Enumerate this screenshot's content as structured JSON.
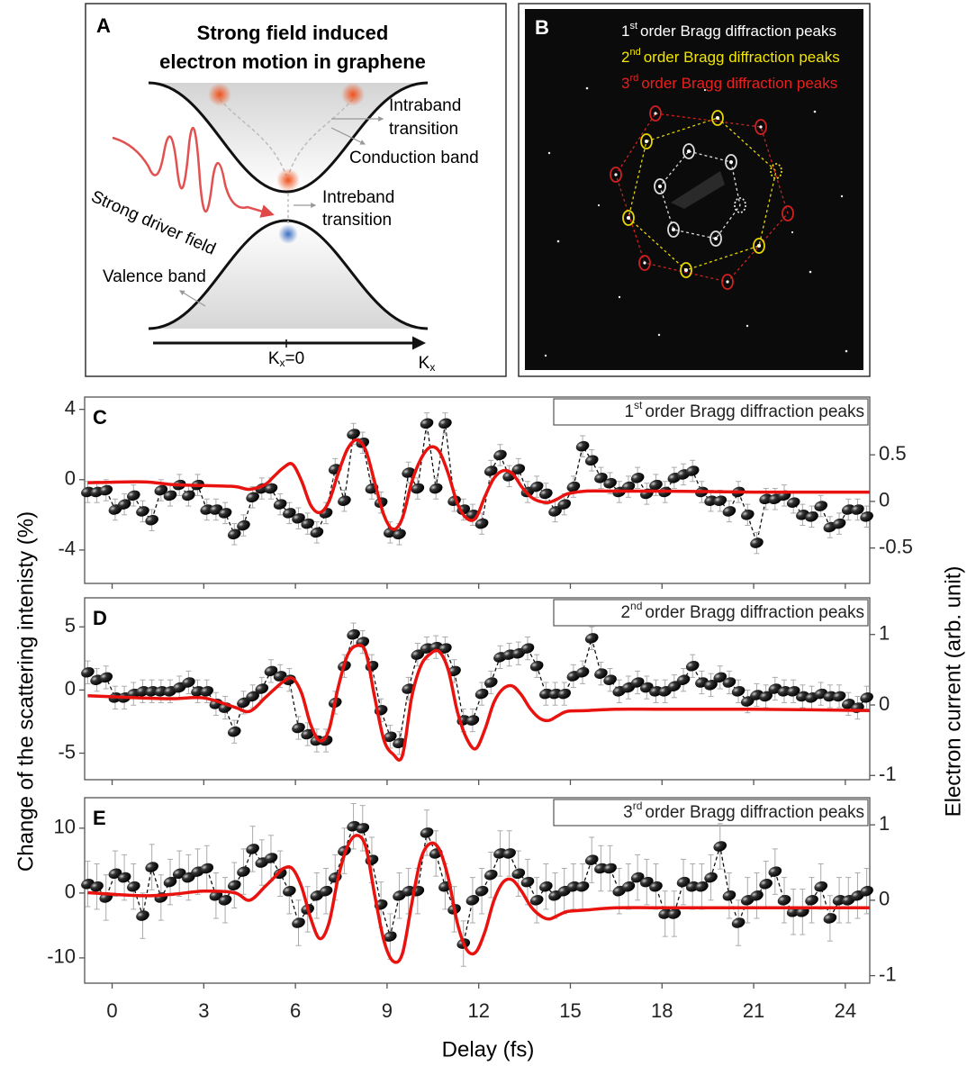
{
  "panel_a": {
    "label": "A",
    "title_lines": [
      "Strong field induced",
      "electron motion in graphene"
    ],
    "intraband": [
      "Intraband",
      "transition"
    ],
    "conduction_band": "Conduction band",
    "interband": [
      "Intreband",
      "transition"
    ],
    "driver_field": "Strong driver field",
    "valence_band": "Valence band",
    "k_origin": {
      "symbol": "K",
      "subscript": "x",
      "rest": "=0"
    },
    "k_axis": {
      "symbol": "K",
      "subscript": "x"
    }
  },
  "panel_b": {
    "label": "B",
    "legend": [
      {
        "number": "1",
        "sup": "st",
        "text": "order Bragg diffraction peaks",
        "color": "#ffffff"
      },
      {
        "number": "2",
        "sup": "nd",
        "text": "order Bragg diffraction peaks",
        "color": "#f2e600"
      },
      {
        "number": "3",
        "sup": "rd",
        "text": "order Bragg diffraction peaks",
        "color": "#e8201e"
      }
    ]
  },
  "axes_labels": {
    "x": "Delay (fs)",
    "y": "Change of the scattering intenisty (%)",
    "y2": "Electron current (arb. unit)"
  },
  "chart_data": [
    {
      "type": "line",
      "panel_label": "C",
      "title_number": "1",
      "title_sup": "st",
      "title": "order Bragg diffraction peaks",
      "xlim": [
        -0.9,
        24.8
      ],
      "xticks": [
        0,
        3,
        6,
        9,
        12,
        15,
        18,
        21,
        24
      ],
      "ylim": [
        -5.9,
        4.7
      ],
      "yticks": [
        -4,
        0,
        4
      ],
      "y2lim": [
        -0.88,
        1.12
      ],
      "y2ticks": [
        -0.5,
        0,
        0.5
      ],
      "series": [
        {
          "color": "#111111",
          "marker": true,
          "dashed": true,
          "error": 0.6,
          "x": [
            -0.8,
            -0.5,
            -0.2,
            0.1,
            0.4,
            0.7,
            1.0,
            1.3,
            1.6,
            1.9,
            2.2,
            2.5,
            2.8,
            3.1,
            3.4,
            3.7,
            4.0,
            4.3,
            4.6,
            4.9,
            5.2,
            5.5,
            5.8,
            6.1,
            6.4,
            6.7,
            7.0,
            7.3,
            7.6,
            7.9,
            8.2,
            8.5,
            8.8,
            9.1,
            9.4,
            9.7,
            10.0,
            10.3,
            10.6,
            10.9,
            11.2,
            11.5,
            11.8,
            12.1,
            12.4,
            12.7,
            13.0,
            13.3,
            13.6,
            13.9,
            14.2,
            14.5,
            14.8,
            15.1,
            15.4,
            15.7,
            16.0,
            16.3,
            16.6,
            16.9,
            17.2,
            17.5,
            17.8,
            18.1,
            18.4,
            18.7,
            19.0,
            19.3,
            19.6,
            19.9,
            20.2,
            20.5,
            20.8,
            21.1,
            21.4,
            21.7,
            22.0,
            22.3,
            22.6,
            22.9,
            23.2,
            23.5,
            23.8,
            24.1,
            24.4,
            24.7
          ],
          "values": [
            -0.7,
            -0.7,
            -0.6,
            -1.7,
            -1.4,
            -0.9,
            -1.8,
            -2.3,
            -0.6,
            -0.9,
            -0.3,
            -0.9,
            -0.3,
            -1.7,
            -1.7,
            -1.9,
            -3.1,
            -2.6,
            -1.0,
            -0.5,
            -0.5,
            -1.4,
            -1.9,
            -2.2,
            -2.5,
            -3.0,
            -1.9,
            0.6,
            -1.2,
            2.6,
            2.1,
            -0.5,
            -1.3,
            -3.0,
            -3.1,
            0.4,
            -0.5,
            3.2,
            -0.5,
            3.2,
            -1.2,
            -1.7,
            -2.0,
            -2.5,
            0.5,
            1.4,
            0.2,
            0.6,
            -0.7,
            -0.4,
            -0.8,
            -1.8,
            -1.4,
            -0.4,
            1.9,
            1.1,
            0.1,
            -0.2,
            -0.7,
            -0.4,
            0.1,
            -0.8,
            -0.3,
            -0.7,
            0.1,
            0.3,
            0.5,
            -0.7,
            -1.2,
            -1.2,
            -1.8,
            -0.7,
            -2.0,
            -3.6,
            -1.1,
            -1.1,
            -0.9,
            -1.3,
            -2.0,
            -2.1,
            -1.5,
            -2.7,
            -2.5,
            -1.7,
            -1.7,
            -2.1
          ]
        },
        {
          "color": "#e8130f",
          "axis": "y2",
          "x": [
            -0.8,
            1,
            2,
            3,
            4,
            4.5,
            5,
            5.3,
            5.6,
            5.9,
            6.2,
            6.5,
            6.8,
            7.1,
            7.4,
            7.7,
            8.0,
            8.3,
            8.6,
            8.9,
            9.2,
            9.5,
            9.8,
            10.1,
            10.4,
            10.7,
            11.0,
            11.3,
            11.6,
            11.9,
            12.2,
            12.5,
            12.8,
            13.1,
            13.4,
            13.7,
            14.0,
            14.3,
            14.6,
            14.9,
            15.5,
            16.5,
            18,
            21,
            24.8
          ],
          "values": [
            0.2,
            0.21,
            0.18,
            0.17,
            0.16,
            0.13,
            0.18,
            0.27,
            0.36,
            0.4,
            0.22,
            -0.04,
            -0.12,
            0.0,
            0.3,
            0.56,
            0.66,
            0.55,
            0.2,
            -0.15,
            -0.3,
            -0.18,
            0.2,
            0.45,
            0.58,
            0.54,
            0.3,
            -0.02,
            -0.18,
            -0.18,
            0.05,
            0.25,
            0.33,
            0.3,
            0.16,
            0.05,
            0.0,
            -0.01,
            0.03,
            0.08,
            0.11,
            0.11,
            0.11,
            0.1,
            0.1
          ]
        }
      ]
    },
    {
      "type": "line",
      "panel_label": "D",
      "title_number": "2",
      "title_sup": "nd",
      "title": "order Bragg diffraction peaks",
      "xlim": [
        -0.9,
        24.8
      ],
      "xticks": [
        0,
        3,
        6,
        9,
        12,
        15,
        18,
        21,
        24
      ],
      "ylim": [
        -7.1,
        7.3
      ],
      "yticks": [
        -5,
        0,
        5
      ],
      "y2lim": [
        -1.06,
        1.52
      ],
      "y2ticks": [
        -1,
        0,
        1
      ],
      "series": [
        {
          "color": "#111111",
          "marker": true,
          "dashed": true,
          "error": 0.9,
          "x": [
            -0.8,
            -0.5,
            -0.2,
            0.1,
            0.4,
            0.7,
            1.0,
            1.3,
            1.6,
            1.9,
            2.2,
            2.5,
            2.8,
            3.1,
            3.4,
            3.7,
            4.0,
            4.3,
            4.6,
            4.9,
            5.2,
            5.5,
            5.8,
            6.1,
            6.4,
            6.7,
            7.0,
            7.3,
            7.6,
            7.9,
            8.2,
            8.5,
            8.8,
            9.1,
            9.4,
            9.7,
            10.0,
            10.3,
            10.6,
            10.9,
            11.2,
            11.5,
            11.8,
            12.1,
            12.4,
            12.7,
            13.0,
            13.3,
            13.6,
            13.9,
            14.2,
            14.5,
            14.8,
            15.1,
            15.4,
            15.7,
            16.0,
            16.3,
            16.6,
            16.9,
            17.2,
            17.5,
            17.8,
            18.1,
            18.4,
            18.7,
            19.0,
            19.3,
            19.6,
            19.9,
            20.2,
            20.5,
            20.8,
            21.1,
            21.4,
            21.7,
            22.0,
            22.3,
            22.6,
            22.9,
            23.2,
            23.5,
            23.8,
            24.1,
            24.4,
            24.7
          ],
          "values": [
            1.4,
            0.8,
            1.0,
            -0.6,
            -0.6,
            -0.3,
            -0.1,
            -0.1,
            -0.1,
            -0.1,
            0.2,
            0.6,
            -0.1,
            -0.1,
            -1.1,
            -1.4,
            -3.3,
            -1.0,
            -0.5,
            0.1,
            1.5,
            1.1,
            0.8,
            -3.0,
            -3.5,
            -4.0,
            -4.0,
            -1.0,
            1.9,
            4.4,
            3.8,
            1.9,
            -1.6,
            -3.7,
            -4.2,
            0.1,
            2.8,
            3.3,
            3.4,
            3.3,
            1.5,
            -2.4,
            -2.4,
            -0.3,
            0.6,
            2.6,
            2.8,
            2.9,
            3.3,
            1.9,
            -0.3,
            -0.3,
            -0.3,
            1.1,
            1.4,
            4.1,
            1.3,
            0.8,
            -0.1,
            0.2,
            0.6,
            0.2,
            -0.1,
            -0.1,
            0.3,
            0.8,
            1.9,
            0.6,
            0.4,
            1.0,
            0.6,
            -0.1,
            -0.9,
            -0.4,
            -0.5,
            0.1,
            -0.1,
            -0.1,
            -0.5,
            -0.6,
            -0.3,
            -0.5,
            -0.5,
            -1.1,
            -1.4,
            -0.6
          ]
        },
        {
          "color": "#e8130f",
          "axis": "y2",
          "x": [
            -0.8,
            1,
            2,
            3,
            4,
            4.5,
            5,
            5.3,
            5.6,
            5.9,
            6.2,
            6.5,
            6.8,
            7.1,
            7.4,
            7.7,
            8.0,
            8.3,
            8.6,
            8.9,
            9.2,
            9.5,
            9.8,
            10.1,
            10.4,
            10.7,
            11.0,
            11.3,
            11.6,
            11.9,
            12.2,
            12.5,
            12.8,
            13.1,
            13.4,
            13.7,
            14.0,
            14.3,
            14.6,
            14.9,
            15.5,
            16.5,
            18,
            21,
            24.8
          ],
          "values": [
            0.13,
            0.1,
            0.09,
            0.1,
            -0.03,
            -0.09,
            0.1,
            0.22,
            0.33,
            0.38,
            0.17,
            -0.28,
            -0.51,
            -0.35,
            0.25,
            0.7,
            0.84,
            0.75,
            0.1,
            -0.5,
            -0.7,
            -0.72,
            0.1,
            0.55,
            0.72,
            0.76,
            0.5,
            -0.09,
            -0.47,
            -0.62,
            -0.35,
            0.04,
            0.23,
            0.27,
            0.14,
            -0.06,
            -0.19,
            -0.22,
            -0.15,
            -0.09,
            -0.08,
            -0.06,
            -0.06,
            -0.06,
            -0.08
          ]
        }
      ]
    },
    {
      "type": "line",
      "panel_label": "E",
      "title_number": "3",
      "title_sup": "rd",
      "title": "order Bragg diffraction peaks",
      "xlim": [
        -0.9,
        24.8
      ],
      "xticks": [
        0,
        3,
        6,
        9,
        12,
        15,
        18,
        21,
        24
      ],
      "ylim": [
        -13.9,
        14.7
      ],
      "yticks": [
        -10,
        0,
        10
      ],
      "y2lim": [
        -1.1,
        1.36
      ],
      "y2ticks": [
        -1,
        0,
        1
      ],
      "series": [
        {
          "color": "#111111",
          "marker": true,
          "dashed": true,
          "error": 3.5,
          "x": [
            -0.8,
            -0.5,
            -0.2,
            0.1,
            0.4,
            0.7,
            1.0,
            1.3,
            1.6,
            1.9,
            2.2,
            2.5,
            2.8,
            3.1,
            3.4,
            3.7,
            4.0,
            4.3,
            4.6,
            4.9,
            5.2,
            5.5,
            5.8,
            6.1,
            6.4,
            6.7,
            7.0,
            7.3,
            7.6,
            7.9,
            8.2,
            8.5,
            8.8,
            9.1,
            9.4,
            9.7,
            10.0,
            10.3,
            10.6,
            10.9,
            11.2,
            11.5,
            11.8,
            12.1,
            12.4,
            12.7,
            13.0,
            13.3,
            13.6,
            13.9,
            14.2,
            14.5,
            14.8,
            15.1,
            15.4,
            15.7,
            16.0,
            16.3,
            16.6,
            16.9,
            17.2,
            17.5,
            17.8,
            18.1,
            18.4,
            18.7,
            19.0,
            19.3,
            19.6,
            19.9,
            20.2,
            20.5,
            20.8,
            21.1,
            21.4,
            21.7,
            22.0,
            22.3,
            22.6,
            22.9,
            23.2,
            23.5,
            23.8,
            24.1,
            24.4,
            24.7
          ],
          "values": [
            1.4,
            1.0,
            -0.7,
            3.0,
            2.4,
            1.0,
            -3.5,
            4.0,
            -0.7,
            1.7,
            3.0,
            2.4,
            3.3,
            3.8,
            -0.4,
            -1.1,
            1.2,
            3.3,
            6.8,
            4.7,
            5.4,
            3.0,
            0.3,
            -4.6,
            -2.5,
            -0.4,
            0.3,
            2.4,
            6.5,
            10.3,
            10.0,
            5.1,
            -1.8,
            -6.7,
            -0.4,
            0.3,
            0.3,
            9.3,
            6.1,
            1.0,
            -2.5,
            -7.8,
            -1.1,
            0.3,
            2.8,
            6.1,
            6.1,
            3.0,
            1.7,
            -1.1,
            1.0,
            -0.4,
            0.3,
            1.0,
            1.0,
            5.1,
            3.8,
            3.8,
            0.3,
            1.0,
            2.4,
            1.7,
            1.0,
            -3.2,
            -3.2,
            1.7,
            1.0,
            1.0,
            2.4,
            7.2,
            -0.4,
            -4.6,
            -1.1,
            -0.4,
            1.4,
            3.3,
            -1.1,
            -2.9,
            -2.9,
            -1.1,
            1.0,
            -3.9,
            -1.1,
            -1.1,
            -0.4,
            0.3
          ]
        },
        {
          "color": "#e8130f",
          "axis": "y2",
          "x": [
            -0.8,
            1,
            2,
            3,
            4,
            4.5,
            5,
            5.3,
            5.6,
            5.9,
            6.2,
            6.5,
            6.8,
            7.1,
            7.4,
            7.7,
            8.0,
            8.3,
            8.6,
            8.9,
            9.2,
            9.5,
            9.8,
            10.1,
            10.4,
            10.7,
            11.0,
            11.3,
            11.6,
            11.9,
            12.2,
            12.5,
            12.8,
            13.1,
            13.4,
            13.7,
            14.0,
            14.3,
            14.6,
            14.9,
            15.5,
            16.5,
            18,
            21,
            24.8
          ],
          "values": [
            0.1,
            0.06,
            0.08,
            0.12,
            0.1,
            0,
            0.18,
            0.3,
            0.42,
            0.42,
            0.18,
            -0.24,
            -0.51,
            -0.3,
            0.3,
            0.71,
            0.86,
            0.71,
            0.06,
            -0.54,
            -0.81,
            -0.71,
            -0.06,
            0.54,
            0.75,
            0.68,
            0.3,
            -0.3,
            -0.65,
            -0.69,
            -0.42,
            0,
            0.24,
            0.27,
            0.12,
            -0.08,
            -0.2,
            -0.25,
            -0.2,
            -0.15,
            -0.13,
            -0.1,
            -0.1,
            -0.1,
            -0.1
          ]
        }
      ]
    }
  ]
}
